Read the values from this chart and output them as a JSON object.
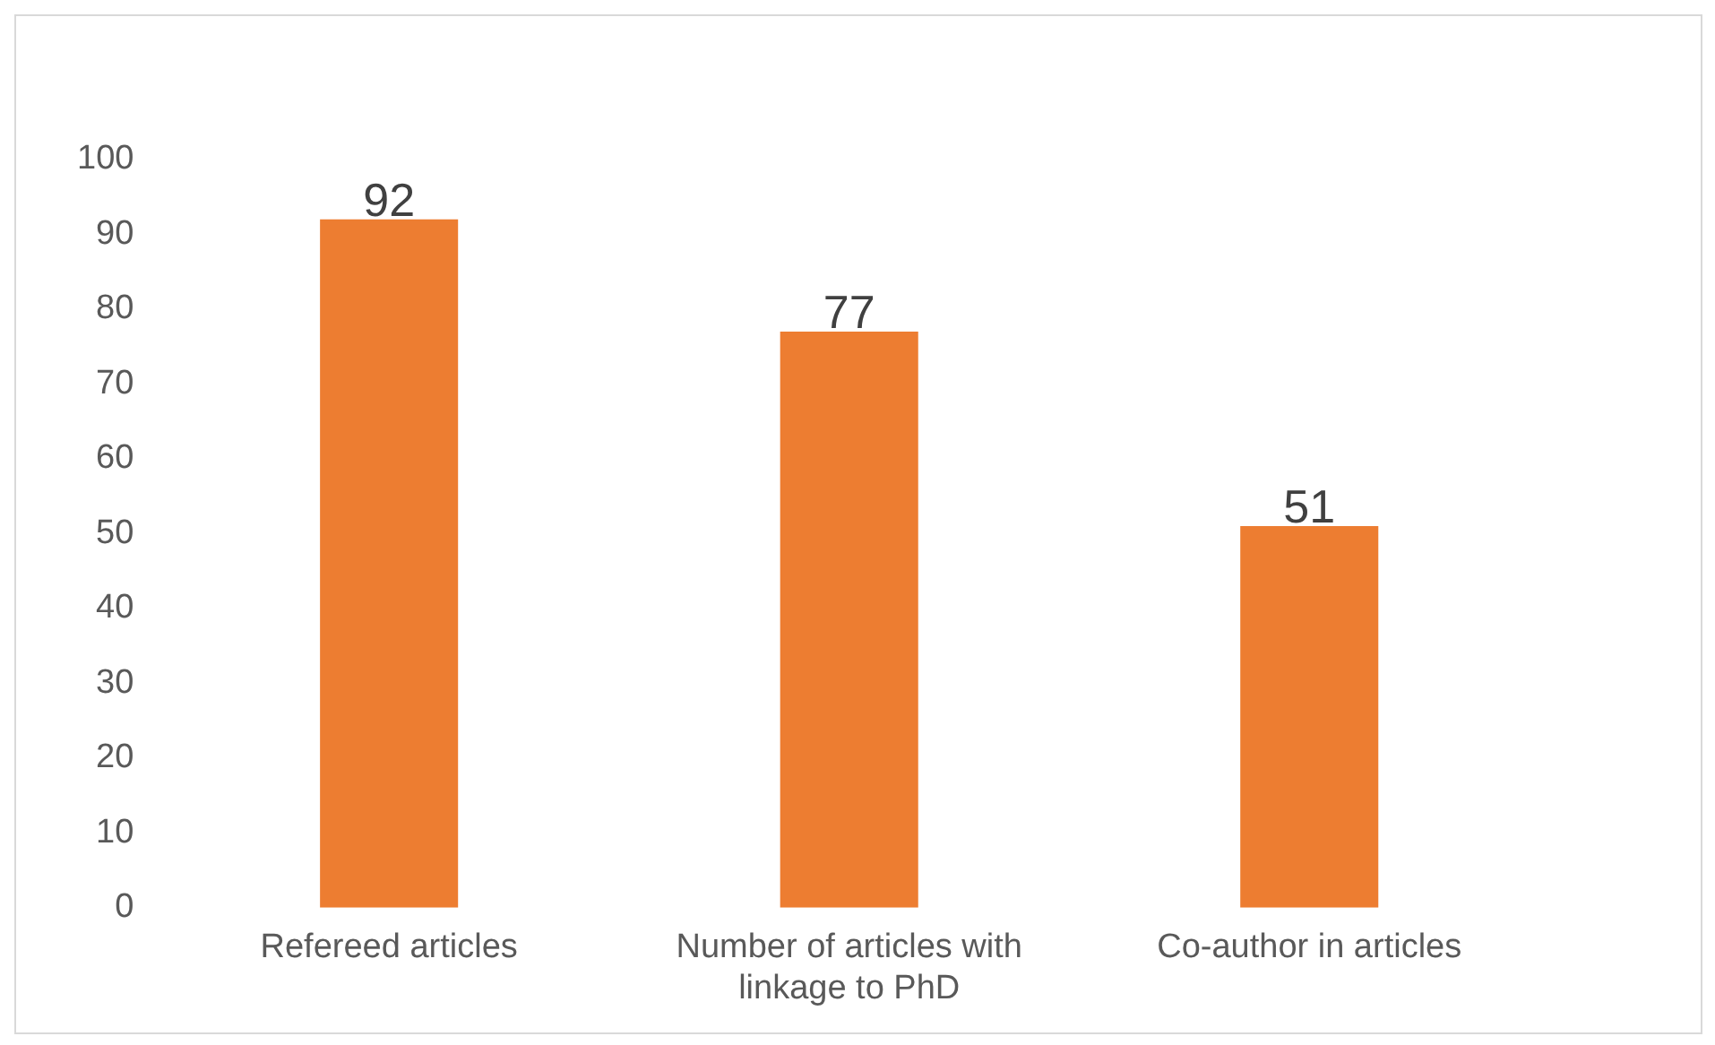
{
  "chart_data": {
    "type": "bar",
    "categories": [
      "Refereed articles",
      "Number of articles with linkage to PhD",
      "Co-author in articles"
    ],
    "values": [
      92,
      77,
      51
    ],
    "color": "#ed7d31",
    "ylim": [
      0,
      100
    ],
    "yticks": [
      0,
      10,
      20,
      30,
      40,
      50,
      60,
      70,
      80,
      90,
      100
    ],
    "grid": false,
    "legend": false,
    "data_labels": true
  }
}
